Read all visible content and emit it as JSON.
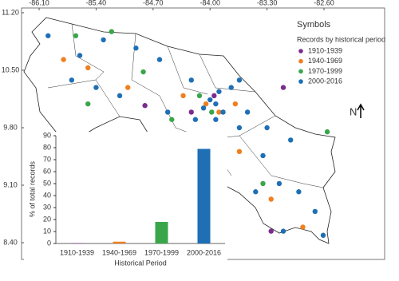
{
  "map": {
    "xlim": [
      -86.316,
      -81.855
    ],
    "ylim": [
      8.196,
      11.258
    ],
    "xticks": [
      {
        "value": -86.1,
        "label": "-86.10"
      },
      {
        "value": -85.4,
        "label": "-85.40"
      },
      {
        "value": -84.7,
        "label": "-84.70"
      },
      {
        "value": -84.0,
        "label": "-84.00"
      },
      {
        "value": -83.3,
        "label": "-83.30"
      },
      {
        "value": -82.6,
        "label": "-82.60"
      }
    ],
    "yticks": [
      {
        "value": 11.2,
        "label": "11.20"
      },
      {
        "value": 10.5,
        "label": "10.50"
      },
      {
        "value": 9.8,
        "label": "9.80"
      },
      {
        "value": 9.1,
        "label": "9.10"
      },
      {
        "value": 8.4,
        "label": "8.40"
      }
    ],
    "legend_title": "Symbols",
    "legend_subtitle": "Records by historical period",
    "north_label": "N",
    "series": [
      {
        "name": "1910-1939",
        "color": "#7b2d8e",
        "points": [
          [
            -83.95,
            10.19
          ],
          [
            -84.23,
            9.99
          ],
          [
            -83.25,
            8.54
          ],
          [
            -83.1,
            10.29
          ],
          [
            -84.8,
            10.07
          ]
        ]
      },
      {
        "name": "1940-1969",
        "color": "#f07f1f",
        "points": [
          [
            -84.05,
            10.09
          ],
          [
            -83.89,
            9.99
          ],
          [
            -84.33,
            10.19
          ],
          [
            -85.01,
            10.29
          ],
          [
            -83.64,
            9.51
          ],
          [
            -83.25,
            8.93
          ],
          [
            -82.86,
            8.59
          ],
          [
            -85.5,
            10.53
          ],
          [
            -83.69,
            10.09
          ],
          [
            -85.8,
            10.63
          ]
        ]
      },
      {
        "name": "1970-1999",
        "color": "#3aa64a",
        "points": [
          [
            -83.98,
            9.99
          ],
          [
            -84.13,
            10.19
          ],
          [
            -84.82,
            10.48
          ],
          [
            -85.21,
            10.97
          ],
          [
            -85.5,
            10.09
          ],
          [
            -82.56,
            9.75
          ],
          [
            -83.35,
            9.12
          ],
          [
            -84.47,
            9.9
          ],
          [
            -85.65,
            10.92
          ]
        ]
      },
      {
        "name": "2000-2016",
        "color": "#1f6fb5",
        "points": [
          [
            -84.0,
            10.14
          ],
          [
            -83.93,
            10.09
          ],
          [
            -84.08,
            10.04
          ],
          [
            -83.84,
            9.99
          ],
          [
            -83.74,
            10.29
          ],
          [
            -83.64,
            10.38
          ],
          [
            -84.23,
            10.38
          ],
          [
            -84.62,
            10.63
          ],
          [
            -84.91,
            10.77
          ],
          [
            -85.31,
            10.87
          ],
          [
            -85.6,
            10.68
          ],
          [
            -85.11,
            10.19
          ],
          [
            -84.52,
            9.99
          ],
          [
            -83.64,
            9.8
          ],
          [
            -83.35,
            9.46
          ],
          [
            -83.15,
            9.12
          ],
          [
            -82.91,
            9.02
          ],
          [
            -82.71,
            8.78
          ],
          [
            -82.61,
            8.49
          ],
          [
            -83.44,
            9.02
          ],
          [
            -83.1,
            8.54
          ],
          [
            -83.93,
            9.9
          ],
          [
            -84.18,
            9.9
          ],
          [
            -85.4,
            10.29
          ],
          [
            -85.7,
            10.38
          ],
          [
            -83.54,
            9.99
          ],
          [
            -83.89,
            10.24
          ],
          [
            -83.3,
            9.8
          ],
          [
            -83.01,
            9.65
          ],
          [
            -85.99,
            10.92
          ]
        ]
      }
    ]
  },
  "chart_data": {
    "type": "bar",
    "categories": [
      "1910-1939",
      "1940-1969",
      "1970-1999",
      "2000-2016"
    ],
    "values": [
      0.3,
      1.5,
      18,
      79
    ],
    "colors": [
      "#7b2d8e",
      "#f07f1f",
      "#3aa64a",
      "#1f6fb5"
    ],
    "ylim": [
      0,
      90
    ],
    "yticks": [
      0,
      10,
      20,
      30,
      40,
      50,
      60,
      70,
      80,
      90
    ],
    "xlabel": "Historical Period",
    "ylabel": "% of total records"
  }
}
